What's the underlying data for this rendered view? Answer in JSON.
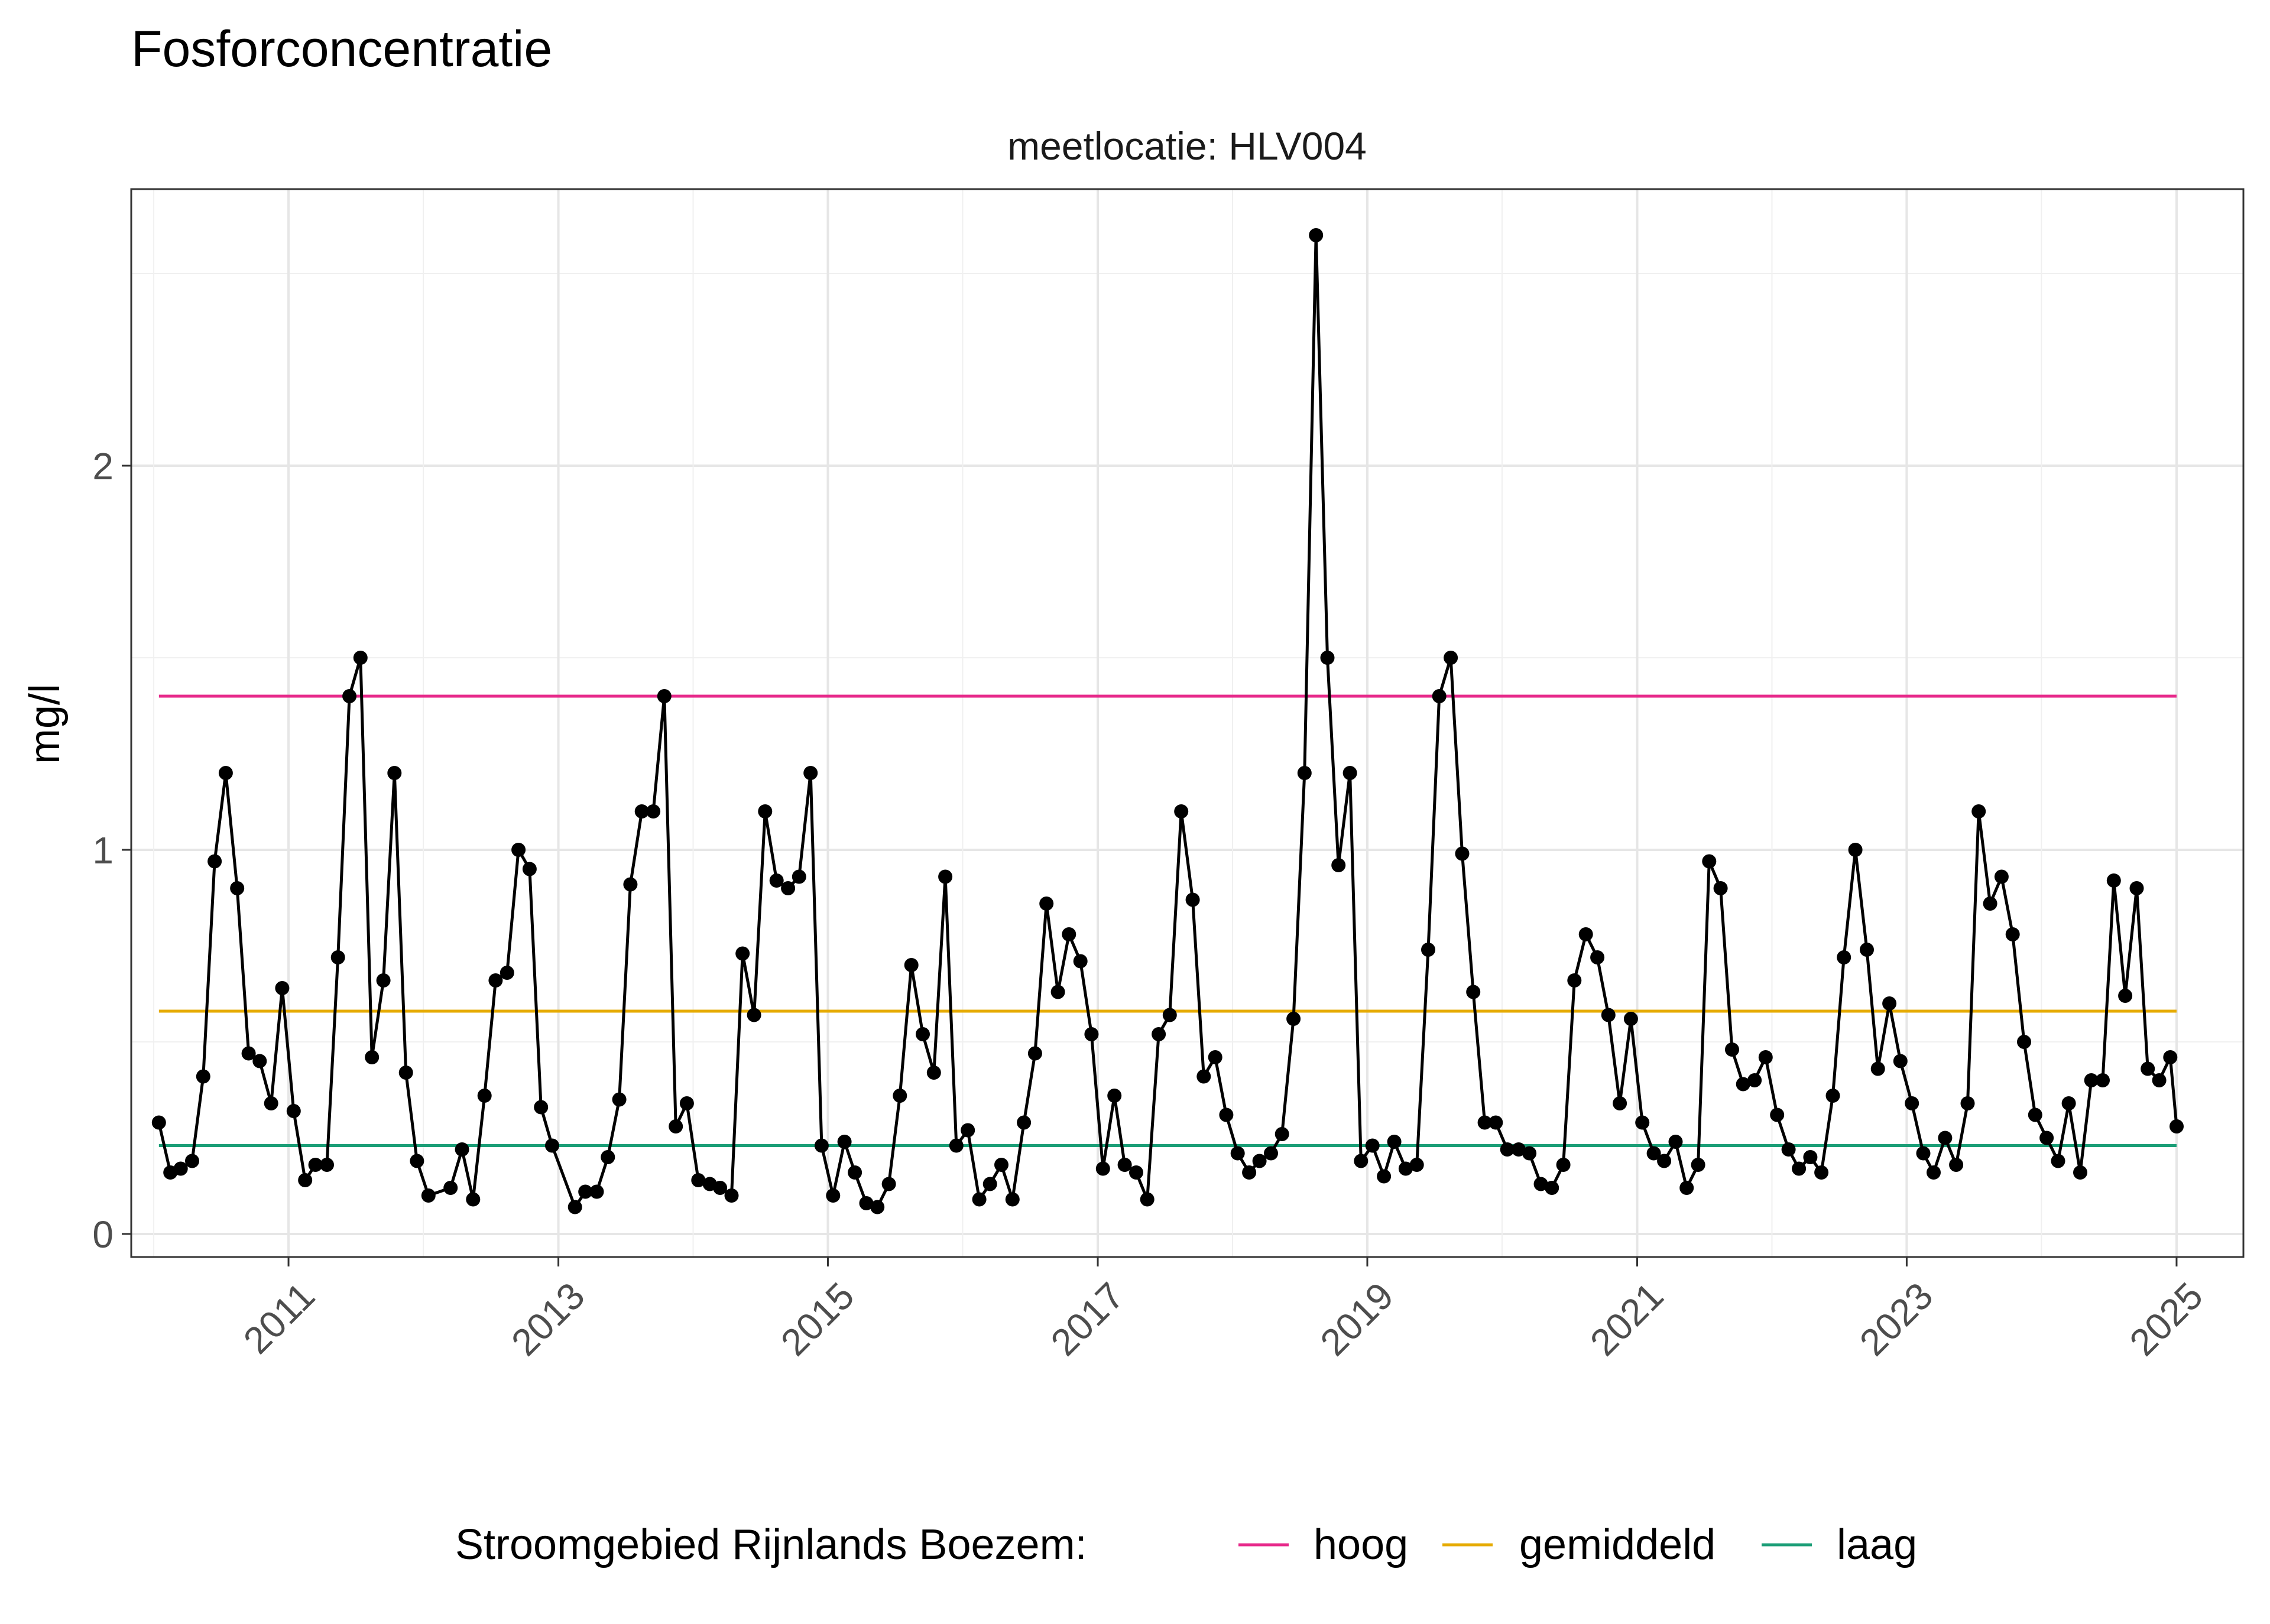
{
  "chart_data": {
    "type": "line",
    "title": "Fosforconcentratie",
    "subtitle": "meetlocatie: HLV004",
    "xlabel": "",
    "ylabel": "mg/l",
    "xlim": [
      "2009-11-01",
      "2025-07-01"
    ],
    "ylim": [
      -0.06,
      2.72
    ],
    "x_ticks": [
      "2011",
      "2013",
      "2015",
      "2017",
      "2019",
      "2021",
      "2023",
      "2025"
    ],
    "y_ticks": [
      0,
      1,
      2
    ],
    "grid": true,
    "legend_position": "bottom",
    "legend_title": "Stroomgebied Rijnlands Boezem:",
    "reference_lines": [
      {
        "name": "hoog",
        "value": 1.4,
        "color": "#E7298A"
      },
      {
        "name": "gemiddeld",
        "value": 0.58,
        "color": "#E6AB02"
      },
      {
        "name": "laag",
        "value": 0.23,
        "color": "#1B9E77"
      }
    ],
    "ref_line_range": [
      "2010-01-15",
      "2025-01-01"
    ],
    "series": [
      {
        "color": "#000000",
        "x": [
          "2010-01-15",
          "2010-02-15",
          "2010-03-15",
          "2010-04-15",
          "2010-05-15",
          "2010-06-15",
          "2010-07-15",
          "2010-08-15",
          "2010-09-15",
          "2010-10-15",
          "2010-11-15",
          "2010-12-15",
          "2011-01-15",
          "2011-02-15",
          "2011-03-15",
          "2011-04-15",
          "2011-05-15",
          "2011-06-15",
          "2011-07-15",
          "2011-08-15",
          "2011-09-15",
          "2011-10-15",
          "2011-11-15",
          "2011-12-15",
          "2012-01-15",
          "2012-02-15",
          "2012-03-15",
          "2012-04-15",
          "2012-05-15",
          "2012-06-15",
          "2012-07-15",
          "2012-08-15",
          "2012-09-15",
          "2012-10-15",
          "2012-11-15",
          "2012-12-15",
          "2013-01-15",
          "2013-02-15",
          "2013-03-15",
          "2013-04-15",
          "2013-05-15",
          "2013-06-15",
          "2013-07-15",
          "2013-08-15",
          "2013-09-15",
          "2013-10-15",
          "2013-11-15",
          "2013-12-15",
          "2014-01-15",
          "2014-02-15",
          "2014-03-15",
          "2014-04-15",
          "2014-05-15",
          "2014-06-15",
          "2014-07-15",
          "2014-08-15",
          "2014-09-15",
          "2014-10-15",
          "2014-11-15",
          "2014-12-15",
          "2015-01-15",
          "2015-02-15",
          "2015-03-15",
          "2015-04-15",
          "2015-05-15",
          "2015-06-15",
          "2015-07-15",
          "2015-08-15",
          "2015-09-15",
          "2015-10-15",
          "2015-11-15",
          "2015-12-15",
          "2016-01-15",
          "2016-02-15",
          "2016-03-15",
          "2016-04-15",
          "2016-05-15",
          "2016-06-15",
          "2016-07-15",
          "2016-08-15",
          "2016-09-15",
          "2016-10-15",
          "2016-11-15",
          "2016-12-15",
          "2017-01-15",
          "2017-02-15",
          "2017-03-15",
          "2017-04-15",
          "2017-05-15",
          "2017-06-15",
          "2017-07-15",
          "2017-08-15",
          "2017-09-15",
          "2017-10-15",
          "2017-11-15",
          "2017-12-15",
          "2018-01-15",
          "2018-02-15",
          "2018-03-15",
          "2018-04-15",
          "2018-05-15",
          "2018-06-15",
          "2018-07-15",
          "2018-08-15",
          "2018-09-15",
          "2018-10-15",
          "2018-11-15",
          "2018-12-15",
          "2019-01-15",
          "2019-02-15",
          "2019-03-15",
          "2019-04-15",
          "2019-05-15",
          "2019-06-15",
          "2019-07-15",
          "2019-08-15",
          "2019-09-15",
          "2019-10-15",
          "2019-11-15",
          "2019-12-15",
          "2020-01-15",
          "2020-02-15",
          "2020-03-15",
          "2020-04-15",
          "2020-05-15",
          "2020-06-15",
          "2020-07-15",
          "2020-08-15",
          "2020-09-15",
          "2020-10-15",
          "2020-11-15",
          "2020-12-15",
          "2021-01-15",
          "2021-02-15",
          "2021-03-15",
          "2021-04-15",
          "2021-05-15",
          "2021-06-15",
          "2021-07-15",
          "2021-08-15",
          "2021-09-15",
          "2021-10-15",
          "2021-11-15",
          "2021-12-15",
          "2022-01-15",
          "2022-02-15",
          "2022-03-15",
          "2022-04-15",
          "2022-05-15",
          "2022-06-15",
          "2022-07-15",
          "2022-08-15",
          "2022-09-15",
          "2022-10-15",
          "2022-11-15",
          "2022-12-15",
          "2023-01-15",
          "2023-02-15",
          "2023-03-15",
          "2023-04-15",
          "2023-05-15",
          "2023-06-15",
          "2023-07-15",
          "2023-08-15",
          "2023-09-15",
          "2023-10-15",
          "2023-11-15",
          "2023-12-15",
          "2024-01-15",
          "2024-02-15",
          "2024-03-15",
          "2024-04-15",
          "2024-05-15",
          "2024-06-15",
          "2024-07-15",
          "2024-08-15",
          "2024-09-15",
          "2024-10-15",
          "2024-11-15",
          "2024-12-15",
          "2025-01-01"
        ],
        "y": [
          0.29,
          0.16,
          0.17,
          0.19,
          0.41,
          0.97,
          1.2,
          0.9,
          0.47,
          0.45,
          0.34,
          0.64,
          0.32,
          0.14,
          0.18,
          0.18,
          0.72,
          1.4,
          1.5,
          0.46,
          0.66,
          1.2,
          0.42,
          0.19,
          0.1,
          null,
          0.12,
          0.22,
          0.09,
          0.36,
          0.66,
          0.68,
          1.0,
          0.95,
          0.33,
          0.23,
          null,
          0.07,
          0.11,
          0.11,
          0.2,
          0.35,
          0.91,
          1.1,
          1.1,
          1.4,
          0.28,
          0.34,
          0.14,
          0.13,
          0.12,
          0.1,
          0.73,
          0.57,
          1.1,
          0.92,
          0.9,
          0.93,
          1.2,
          0.23,
          0.1,
          0.24,
          0.16,
          0.08,
          0.07,
          0.13,
          0.36,
          0.7,
          0.52,
          0.42,
          0.93,
          0.23,
          0.27,
          0.09,
          0.13,
          0.18,
          0.09,
          0.29,
          0.47,
          0.86,
          0.63,
          0.78,
          0.71,
          0.52,
          0.17,
          0.36,
          0.18,
          0.16,
          0.09,
          0.52,
          0.57,
          1.1,
          0.87,
          0.41,
          0.46,
          0.31,
          0.21,
          0.16,
          0.19,
          0.21,
          0.26,
          0.56,
          1.2,
          2.6,
          1.5,
          0.96,
          1.2,
          0.19,
          0.23,
          0.15,
          0.24,
          0.17,
          0.18,
          0.74,
          1.4,
          1.5,
          0.99,
          0.63,
          0.29,
          0.29,
          0.22,
          0.22,
          0.21,
          0.13,
          0.12,
          0.18,
          0.66,
          0.78,
          0.72,
          0.57,
          0.34,
          0.56,
          0.29,
          0.21,
          0.19,
          0.24,
          0.12,
          0.18,
          0.97,
          0.9,
          0.48,
          0.39,
          0.4,
          0.46,
          0.31,
          0.22,
          0.17,
          0.2,
          0.16,
          0.36,
          0.72,
          1.0,
          0.74,
          0.43,
          0.6,
          0.45,
          0.34,
          0.21,
          0.16,
          0.25,
          0.18,
          0.34,
          1.1,
          0.86,
          0.93,
          0.78,
          0.5,
          0.31,
          0.25,
          0.19,
          0.34,
          0.16,
          0.4,
          0.4,
          0.92,
          0.62,
          0.9,
          0.43,
          0.4,
          0.46,
          0.28
        ]
      }
    ]
  }
}
